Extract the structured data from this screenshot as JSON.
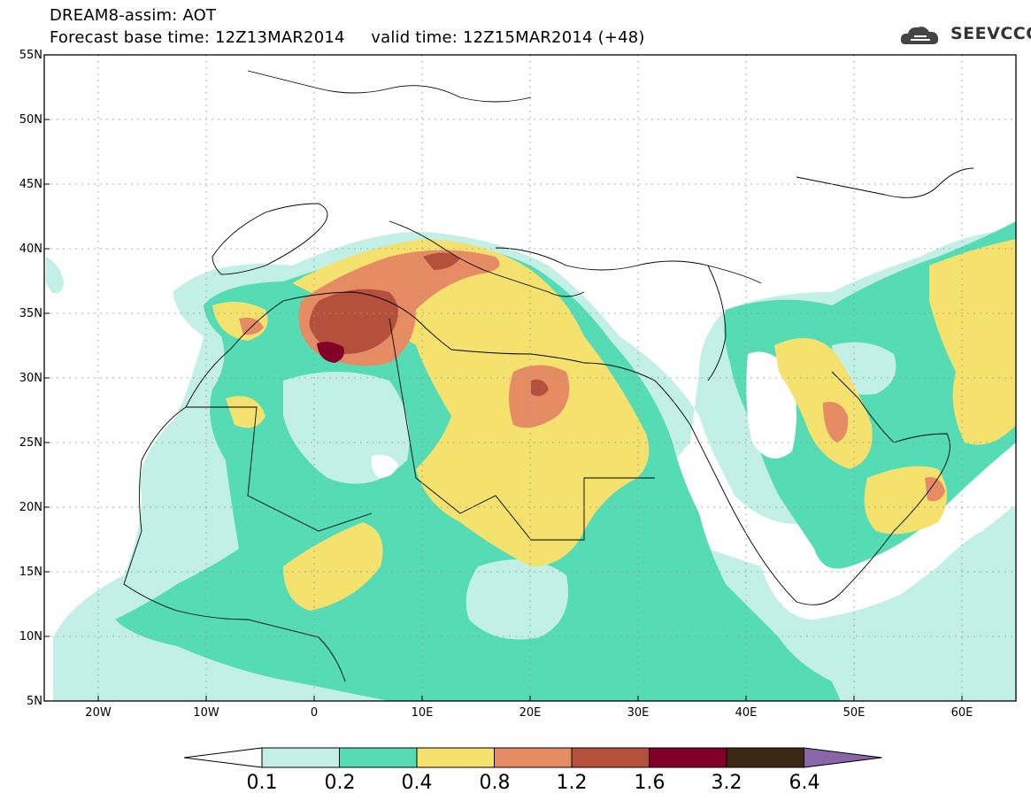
{
  "header": {
    "line1": "DREAM8-assim: AOT",
    "line2": "Forecast base time: 12Z13MAR2014     valid time: 12Z15MAR2014 (+48)",
    "logo_text": "SEEVCCC"
  },
  "map": {
    "lon_range": [
      -25,
      65
    ],
    "lat_range": [
      5,
      55
    ],
    "lat_labels": [
      "55N",
      "50N",
      "45N",
      "40N",
      "35N",
      "30N",
      "25N",
      "20N",
      "15N",
      "10N",
      "5N"
    ],
    "lon_labels": [
      "20W",
      "10W",
      "0",
      "10E",
      "20E",
      "30E",
      "40E",
      "50E",
      "60E"
    ],
    "variable": "AOT"
  },
  "colorbar": {
    "labels": [
      "0.1",
      "0.2",
      "0.4",
      "0.8",
      "1.2",
      "1.6",
      "3.2",
      "6.4"
    ],
    "colors": [
      "#ffffff",
      "#c2f0e6",
      "#55dcb4",
      "#f5e16e",
      "#e68c64",
      "#b4503c",
      "#820028",
      "#3c2814",
      "#8c64aa"
    ]
  }
}
